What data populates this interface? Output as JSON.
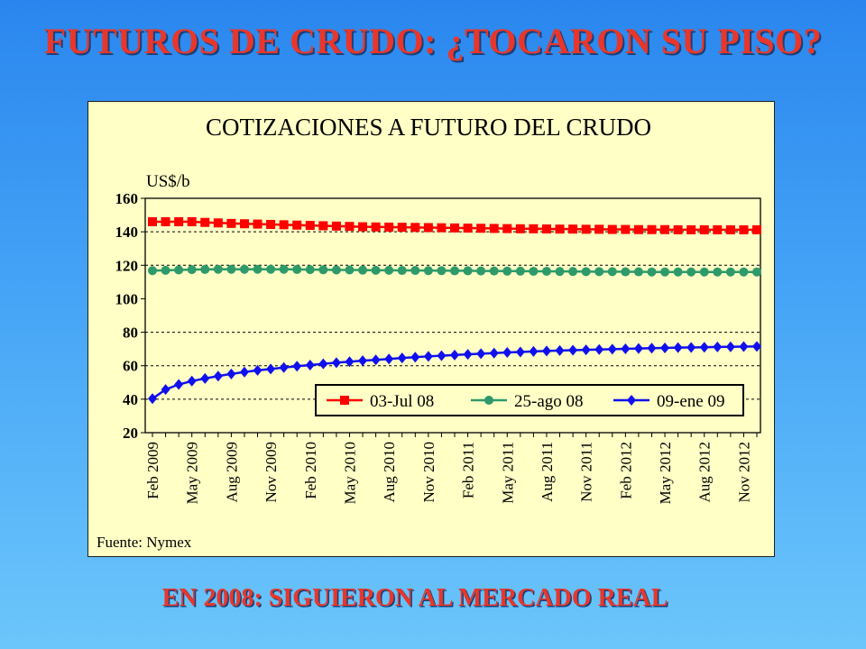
{
  "slide": {
    "title": "FUTUROS DE CRUDO: ¿TOCARON SU PISO?",
    "footer": "EN 2008: SIGUIERON  AL MERCADO REAL"
  },
  "chart_data": {
    "type": "line",
    "title": "COTIZACIONES A FUTURO DEL  CRUDO",
    "ylabel": "US$/b",
    "source": "Fuente: Nymex",
    "ylim": [
      20,
      160
    ],
    "yticks": [
      20,
      40,
      60,
      80,
      100,
      120,
      140,
      160
    ],
    "grid": "horizontal dashed at 40, 60, 80, 120, 140",
    "legend_position": "bottom-right inside plot",
    "x": [
      "Feb 2009",
      "Mar 2009",
      "Apr 2009",
      "May 2009",
      "Jun 2009",
      "Jul 2009",
      "Aug 2009",
      "Sep 2009",
      "Oct 2009",
      "Nov 2009",
      "Dec 2009",
      "Jan 2010",
      "Feb 2010",
      "Mar 2010",
      "Apr 2010",
      "May 2010",
      "Jun 2010",
      "Jul 2010",
      "Aug 2010",
      "Sep 2010",
      "Oct 2010",
      "Nov 2010",
      "Dec 2010",
      "Jan 2011",
      "Feb 2011",
      "Mar 2011",
      "Apr 2011",
      "May 2011",
      "Jun 2011",
      "Jul 2011",
      "Aug 2011",
      "Sep 2011",
      "Oct 2011",
      "Nov 2011",
      "Dec 2011",
      "Jan 2012",
      "Feb 2012",
      "Mar 2012",
      "Apr 2012",
      "May 2012",
      "Jun 2012",
      "Jul 2012",
      "Aug 2012",
      "Sep 2012",
      "Oct 2012",
      "Nov 2012",
      "Dec 2012"
    ],
    "xtick_labels": [
      "Feb 2009",
      "May 2009",
      "Aug 2009",
      "Nov 2009",
      "Feb 2010",
      "May 2010",
      "Aug 2010",
      "Nov 2010",
      "Feb 2011",
      "May 2011",
      "Aug 2011",
      "Nov 2011",
      "Feb 2012",
      "May 2012",
      "Aug 2012",
      "Nov 2012"
    ],
    "series": [
      {
        "name": "03-Jul 08",
        "color": "#ff0000",
        "marker": "square",
        "values": [
          146.0,
          146.0,
          146.0,
          146.0,
          145.6,
          145.3,
          145.0,
          144.8,
          144.6,
          144.4,
          144.2,
          144.0,
          143.8,
          143.6,
          143.4,
          143.2,
          143.0,
          142.9,
          142.8,
          142.7,
          142.6,
          142.5,
          142.4,
          142.3,
          142.2,
          142.1,
          142.0,
          141.9,
          141.8,
          141.8,
          141.7,
          141.6,
          141.6,
          141.5,
          141.5,
          141.4,
          141.4,
          141.3,
          141.3,
          141.3,
          141.2,
          141.2,
          141.2,
          141.2,
          141.2,
          141.2,
          141.2
        ]
      },
      {
        "name": "25-ago 08",
        "color": "#2e9a6a",
        "marker": "circle",
        "values": [
          116.8,
          117.0,
          117.2,
          117.4,
          117.5,
          117.6,
          117.6,
          117.6,
          117.6,
          117.6,
          117.6,
          117.5,
          117.4,
          117.3,
          117.2,
          117.2,
          117.1,
          117.0,
          117.0,
          116.9,
          116.9,
          116.8,
          116.8,
          116.7,
          116.7,
          116.6,
          116.6,
          116.5,
          116.5,
          116.4,
          116.4,
          116.3,
          116.3,
          116.2,
          116.2,
          116.2,
          116.1,
          116.1,
          116.0,
          116.0,
          116.0,
          116.0,
          116.0,
          116.0,
          116.0,
          116.0,
          116.0
        ]
      },
      {
        "name": "09-ene 09",
        "color": "#1010ee",
        "marker": "diamond",
        "values": [
          40.3,
          45.8,
          48.8,
          50.8,
          52.4,
          53.8,
          55.1,
          56.2,
          57.2,
          58.0,
          58.9,
          59.7,
          60.4,
          61.1,
          61.8,
          62.4,
          63.0,
          63.5,
          64.0,
          64.6,
          65.1,
          65.6,
          66.0,
          66.4,
          66.8,
          67.2,
          67.5,
          67.9,
          68.2,
          68.5,
          68.8,
          69.1,
          69.3,
          69.5,
          69.7,
          69.9,
          70.1,
          70.3,
          70.5,
          70.6,
          70.8,
          70.9,
          71.0,
          71.2,
          71.3,
          71.4,
          71.5
        ]
      }
    ]
  }
}
